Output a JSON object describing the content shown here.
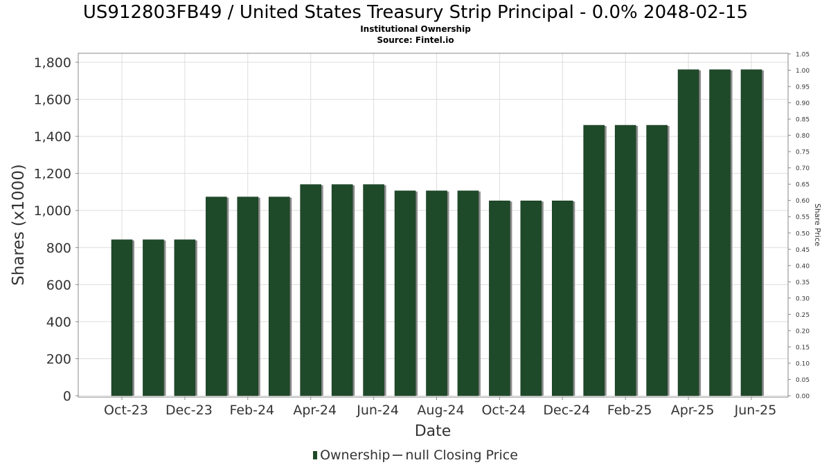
{
  "title": "US912803FB49 / United States Treasury Strip Principal - 0.0% 2048-02-15",
  "subtitle": "Institutional Ownership",
  "source": "Source: Fintel.io",
  "legend": {
    "ownership": "Ownership",
    "price": "null Closing Price"
  },
  "colors": {
    "bar": "#1f4a2a",
    "bar_shadow": "#8c8c8c",
    "grid": "#dddddd",
    "axis_text": "#333333"
  },
  "chart_data": {
    "type": "bar",
    "xlabel": "Date",
    "ylabel": "Shares (x1000)",
    "y2label": "Share Price",
    "ylim": [
      0,
      1850
    ],
    "y2lim": [
      0,
      1.05
    ],
    "yticks": [
      0,
      200,
      400,
      600,
      800,
      1000,
      1200,
      1400,
      1600,
      1800
    ],
    "yticklabels": [
      "0",
      "200",
      "400",
      "600",
      "800",
      "1,000",
      "1,200",
      "1,400",
      "1,600",
      "1,800"
    ],
    "y2ticklabels": [
      "0.00",
      "0.05",
      "0.10",
      "0.15",
      "0.20",
      "0.25",
      "0.30",
      "0.35",
      "0.40",
      "0.45",
      "0.50",
      "0.55",
      "0.60",
      "0.65",
      "0.70",
      "0.75",
      "0.80",
      "0.85",
      "0.90",
      "0.95",
      "1.00",
      "1.05"
    ],
    "xticklabels": [
      "Oct-23",
      "Dec-23",
      "Feb-24",
      "Apr-24",
      "Jun-24",
      "Aug-24",
      "Oct-24",
      "Dec-24",
      "Feb-25",
      "Apr-25",
      "Jun-25"
    ],
    "grid": true,
    "legend_position": "bottom-center",
    "series": [
      {
        "name": "Ownership",
        "values": [
          842,
          842,
          842,
          1073,
          1073,
          1073,
          1140,
          1140,
          1140,
          1106,
          1106,
          1106,
          1052,
          1052,
          1052,
          1460,
          1460,
          1460,
          1760,
          1760,
          1760
        ]
      }
    ]
  }
}
